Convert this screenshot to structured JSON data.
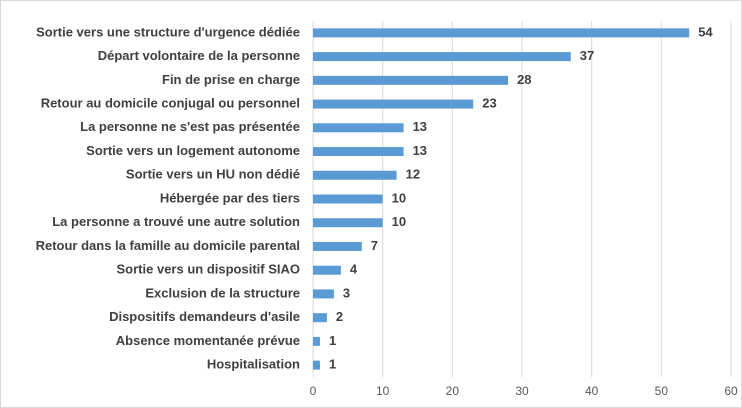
{
  "chart_data": {
    "type": "bar",
    "orientation": "horizontal",
    "categories": [
      "Sortie vers une structure d'urgence dédiée",
      "Départ volontaire de la personne",
      "Fin de prise en charge",
      "Retour au domicile conjugal ou personnel",
      "La personne ne s'est pas présentée",
      "Sortie vers un logement autonome",
      "Sortie vers un HU non dédié",
      "Hébergée par des tiers",
      "La personne a trouvé une autre solution",
      "Retour dans la famille au domicile parental",
      "Sortie vers un dispositif SIAO",
      "Exclusion de la structure",
      "Dispositifs demandeurs d'asile",
      "Absence momentanée prévue",
      "Hospitalisation"
    ],
    "values": [
      54,
      37,
      28,
      23,
      13,
      13,
      12,
      10,
      10,
      7,
      4,
      3,
      2,
      1,
      1
    ],
    "color": "#5b9bd5",
    "xlim": [
      0,
      60
    ],
    "xticks": [
      0,
      10,
      20,
      30,
      40,
      50,
      60
    ],
    "grid": true
  }
}
